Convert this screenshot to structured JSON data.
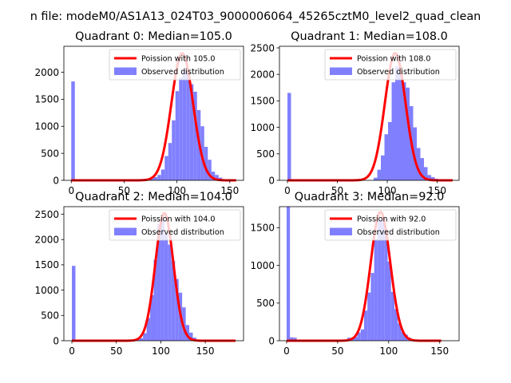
{
  "figure": {
    "suptitle": "n file: modeM0/AS1A13_024T03_9000006064_45265cztM0_level2_quad_clean"
  },
  "colors": {
    "fit": "#ff0000",
    "hist": "#8080ff",
    "axes": "#000000",
    "background": "#ffffff"
  },
  "chart_data": [
    {
      "type": "bar",
      "title": "Quadrant 0: Median=105.0",
      "xlim": [
        -7,
        163
      ],
      "ylim": [
        0,
        2480
      ],
      "xticks": [
        0,
        50,
        100,
        150
      ],
      "yticks": [
        0,
        500,
        1000,
        1500,
        2000
      ],
      "legend_position": "top-right",
      "fit": {
        "name": "Poission with 105.0",
        "mean": 105.0,
        "peak": 2350
      },
      "series": [
        {
          "name": "Observed distribution",
          "bin_edges": [
            0,
            3.4,
            6.8,
            10.2,
            13.6,
            17,
            20.4,
            23.8,
            27.2,
            30.6,
            34,
            37.4,
            40.8,
            44.2,
            47.6,
            51,
            54.4,
            57.8,
            61.2,
            64.6,
            68,
            71.4,
            74.8,
            78.2,
            81.6,
            85,
            88.4,
            91.8,
            95.2,
            98.6,
            102,
            105.4,
            108.8,
            112.2,
            115.6,
            119,
            122.4,
            125.8,
            129.2,
            132.6,
            136,
            139.4,
            142.8,
            146.2,
            149.6,
            153,
            156.4
          ],
          "counts": [
            1830,
            0,
            0,
            0,
            0,
            0,
            0,
            0,
            0,
            0,
            0,
            0,
            0,
            0,
            0,
            0,
            0,
            0,
            0,
            0,
            0,
            0,
            50,
            60,
            100,
            200,
            450,
            690,
            1110,
            1650,
            1900,
            2050,
            2000,
            1780,
            1640,
            1300,
            1000,
            620,
            380,
            160,
            100,
            50,
            20,
            5,
            0,
            0
          ]
        }
      ]
    },
    {
      "type": "bar",
      "title": "Quadrant 1: Median=108.0",
      "xlim": [
        -8,
        172
      ],
      "ylim": [
        0,
        2530
      ],
      "xticks": [
        0,
        50,
        100,
        150
      ],
      "yticks": [
        0,
        500,
        1000,
        1500,
        2000,
        2500
      ],
      "legend_position": "top-right",
      "fit": {
        "name": "Poission with 108.0",
        "mean": 108.0,
        "peak": 2400
      },
      "series": [
        {
          "name": "Observed distribution",
          "bin_edges": [
            0,
            3.6,
            7.2,
            10.8,
            14.4,
            18,
            21.6,
            25.2,
            28.8,
            32.4,
            36,
            39.6,
            43.2,
            46.8,
            50.4,
            54,
            57.6,
            61.2,
            64.8,
            68.4,
            72,
            75.6,
            79.2,
            82.8,
            86.4,
            90,
            93.6,
            97.2,
            100.8,
            104.4,
            108,
            111.6,
            115.2,
            118.8,
            122.4,
            126,
            129.6,
            133.2,
            136.8,
            140.4,
            144,
            147.6,
            151.2,
            154.8,
            158.4,
            162,
            165.6
          ],
          "counts": [
            1650,
            0,
            0,
            0,
            0,
            0,
            0,
            0,
            0,
            0,
            0,
            0,
            0,
            0,
            0,
            0,
            0,
            0,
            0,
            0,
            0,
            0,
            0,
            0,
            50,
            200,
            470,
            870,
            1100,
            1850,
            2150,
            2050,
            1850,
            1750,
            1400,
            1000,
            610,
            420,
            250,
            100,
            60,
            30,
            10,
            5,
            0,
            0
          ]
        }
      ]
    },
    {
      "type": "bar",
      "title": "Quadrant 2: Median=104.0",
      "xlim": [
        -9,
        193
      ],
      "ylim": [
        0,
        2650
      ],
      "xticks": [
        0,
        50,
        100,
        150
      ],
      "yticks": [
        0,
        500,
        1000,
        1500,
        2000,
        2500
      ],
      "legend_position": "top-right",
      "fit": {
        "name": "Poission with 104.0",
        "mean": 104.0,
        "peak": 2520
      },
      "series": [
        {
          "name": "Observed distribution",
          "bin_edges": [
            0,
            4,
            8,
            12,
            16,
            20,
            24,
            28,
            32,
            36,
            40,
            44,
            48,
            52,
            56,
            60,
            64,
            68,
            72,
            76,
            80,
            84,
            88,
            92,
            96,
            100,
            104,
            108,
            112,
            116,
            120,
            124,
            128,
            132,
            136,
            140,
            144,
            148,
            152,
            156,
            160,
            164,
            168,
            172,
            176,
            180,
            184
          ],
          "counts": [
            1480,
            0,
            0,
            0,
            0,
            0,
            0,
            0,
            0,
            0,
            0,
            0,
            0,
            0,
            0,
            0,
            0,
            0,
            30,
            50,
            150,
            450,
            900,
            1600,
            2300,
            2400,
            2100,
            1900,
            1580,
            1220,
            950,
            660,
            310,
            160,
            60,
            20,
            5,
            0,
            0,
            0,
            0,
            0,
            0,
            0,
            0,
            0
          ]
        }
      ]
    },
    {
      "type": "bar",
      "title": "Quadrant 3: Median=92.0",
      "xlim": [
        -7,
        169
      ],
      "ylim": [
        0,
        1780
      ],
      "xticks": [
        0,
        50,
        100,
        150
      ],
      "yticks": [
        0,
        500,
        1000,
        1500
      ],
      "legend_position": "top-right",
      "fit": {
        "name": "Poission with 92.0",
        "mean": 92.0,
        "peak": 1710
      },
      "series": [
        {
          "name": "Observed distribution",
          "bin_edges": [
            0,
            3.3,
            6.6,
            9.9,
            13.2,
            16.5,
            19.8,
            23.1,
            26.4,
            29.7,
            33,
            36.3,
            39.6,
            42.9,
            46.2,
            49.5,
            52.8,
            56.1,
            59.4,
            62.7,
            66,
            69.3,
            72.6,
            75.9,
            79.2,
            82.5,
            85.8,
            89.1,
            92.4,
            95.7,
            99,
            102.3,
            105.6,
            108.9,
            112.2,
            115.5,
            118.8,
            122.1,
            125.4,
            128.7,
            132,
            135.3,
            138.6,
            141.9,
            145.2,
            148.5,
            151.8
          ],
          "counts": [
            1780,
            45,
            40,
            0,
            0,
            0,
            0,
            0,
            0,
            0,
            0,
            0,
            0,
            0,
            0,
            0,
            0,
            0,
            40,
            40,
            50,
            110,
            150,
            400,
            640,
            900,
            1350,
            1600,
            1600,
            1480,
            1050,
            650,
            420,
            230,
            120,
            80,
            40,
            20,
            10,
            5,
            5,
            0,
            0,
            0,
            0,
            0
          ]
        }
      ]
    }
  ]
}
